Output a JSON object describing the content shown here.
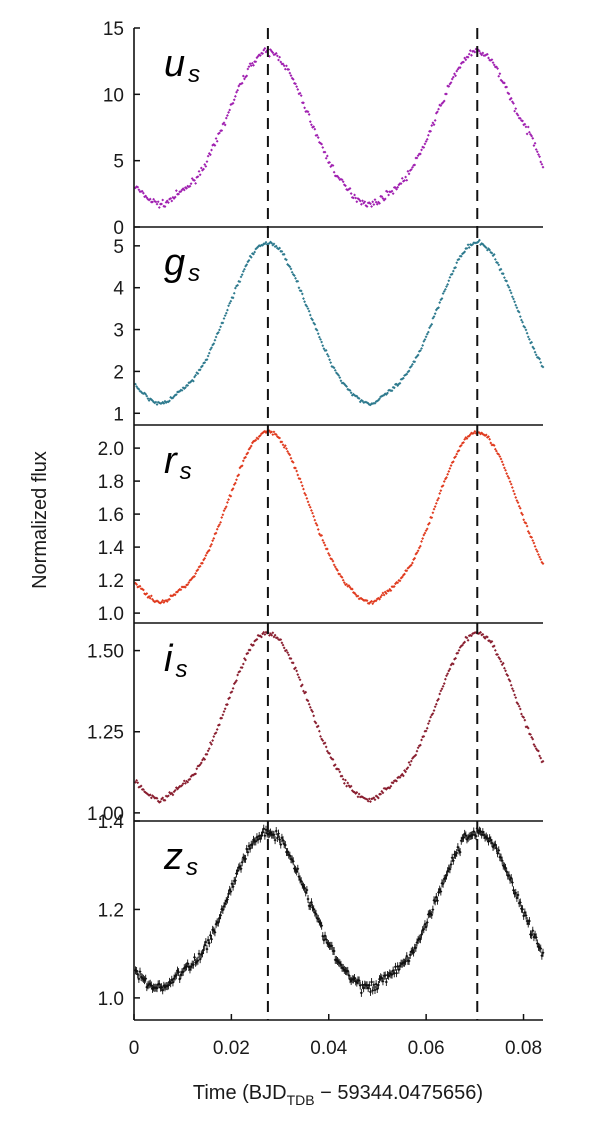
{
  "chart_data": {
    "type": "scatter",
    "xlabel_parts": [
      "Time (BJD",
      "TDB",
      " − 59344.0475656)"
    ],
    "ylabel": "Normalized flux",
    "xlim": [
      0,
      0.084
    ],
    "x_ticks": [
      0,
      0.02,
      0.04,
      0.06,
      0.08
    ],
    "x_tick_labels": [
      "0",
      "0.02",
      "0.04",
      "0.06",
      "0.08"
    ],
    "vlines_x": [
      0.0275,
      0.0705
    ],
    "panels": [
      {
        "band": "u",
        "sub": "s",
        "color": "#a020b0",
        "ylim": [
          0,
          15
        ],
        "y_ticks": [
          0,
          5,
          10,
          15
        ],
        "y_tick_labels": [
          "0",
          "5",
          "10",
          "15"
        ],
        "base": 1.1,
        "amp": 12.1,
        "noise": 0.25,
        "ripple": [
          {
            "x": 0.009,
            "a": 0.35,
            "w": 0.0025
          },
          {
            "x": 0.052,
            "a": 0.35,
            "w": 0.0025
          },
          {
            "x": 0.082,
            "a": 0.8,
            "w": 0.0015
          }
        ]
      },
      {
        "band": "g",
        "sub": "s",
        "color": "#2e7a8e",
        "ylim": [
          0.72,
          5.45
        ],
        "y_ticks": [
          1,
          2,
          3,
          4,
          5
        ],
        "y_tick_labels": [
          "1",
          "2",
          "3",
          "4",
          "5"
        ],
        "base": 1.02,
        "amp": 4.05,
        "noise": 0.05,
        "ripple": [
          {
            "x": 0.009,
            "a": 0.12,
            "w": 0.0025
          },
          {
            "x": 0.052,
            "a": 0.12,
            "w": 0.0025
          }
        ]
      },
      {
        "band": "r",
        "sub": "s",
        "color": "#e03b1f",
        "ylim": [
          0.94,
          2.14
        ],
        "y_ticks": [
          1.0,
          1.2,
          1.4,
          1.6,
          1.8,
          2.0
        ],
        "y_tick_labels": [
          "1.0",
          "1.2",
          "1.4",
          "1.6",
          "1.8",
          "2.0"
        ],
        "base": 1.01,
        "amp": 1.09,
        "noise": 0.012,
        "ripple": [
          {
            "x": 0.009,
            "a": 0.03,
            "w": 0.0025
          },
          {
            "x": 0.052,
            "a": 0.03,
            "w": 0.0025
          }
        ]
      },
      {
        "band": "i",
        "sub": "s",
        "color": "#8a1f30",
        "ylim": [
          0.975,
          1.585
        ],
        "y_ticks": [
          1.0,
          1.25,
          1.5
        ],
        "y_tick_labels": [
          "1.00",
          "1.25",
          "1.50"
        ],
        "base": 1.01,
        "amp": 0.545,
        "noise": 0.008,
        "ripple": [
          {
            "x": 0.009,
            "a": 0.02,
            "w": 0.0025
          },
          {
            "x": 0.052,
            "a": 0.02,
            "w": 0.0025
          }
        ]
      },
      {
        "band": "z",
        "sub": "s",
        "color": "#111111",
        "ylim": [
          0.95,
          1.4
        ],
        "y_ticks": [
          1.0,
          1.2,
          1.4
        ],
        "y_tick_labels": [
          "1.0",
          "1.2",
          "1.4"
        ],
        "base": 1.0,
        "amp": 0.375,
        "noise": 0.012,
        "ripple": [
          {
            "x": 0.009,
            "a": 0.02,
            "w": 0.0025
          },
          {
            "x": 0.052,
            "a": 0.02,
            "w": 0.0025
          }
        ]
      }
    ]
  }
}
